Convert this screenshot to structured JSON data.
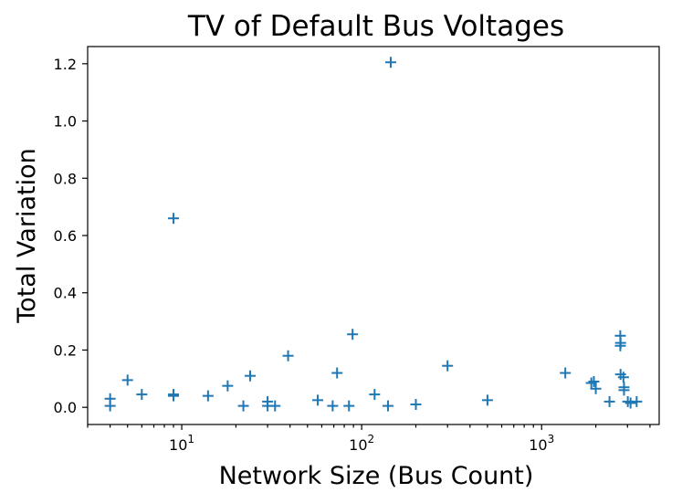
{
  "chart_data": {
    "type": "scatter",
    "title": "TV of Default Bus Voltages",
    "xlabel": "Network Size (Bus Count)",
    "ylabel": "Total Variation",
    "xscale": "log",
    "xlim": [
      3,
      4500
    ],
    "ylim": [
      -0.06,
      1.26
    ],
    "x_ticks": [
      {
        "value": 10,
        "base": "10",
        "exp": "1"
      },
      {
        "value": 100,
        "base": "10",
        "exp": "2"
      },
      {
        "value": 1000,
        "base": "10",
        "exp": "3"
      }
    ],
    "y_ticks": [
      0.0,
      0.2,
      0.4,
      0.6,
      0.8,
      1.0,
      1.2
    ],
    "y_tick_labels": [
      "0.0",
      "0.2",
      "0.4",
      "0.6",
      "0.8",
      "1.0",
      "1.2"
    ],
    "grid": false,
    "marker": "+",
    "marker_color": "#1f77b4",
    "series": [
      {
        "points": [
          [
            4,
            0.03
          ],
          [
            4,
            0.005
          ],
          [
            5,
            0.095
          ],
          [
            6,
            0.045
          ],
          [
            9,
            0.66
          ],
          [
            9,
            0.045
          ],
          [
            9,
            0.04
          ],
          [
            14,
            0.04
          ],
          [
            18,
            0.075
          ],
          [
            22,
            0.005
          ],
          [
            24,
            0.11
          ],
          [
            30,
            0.02
          ],
          [
            30,
            0.005
          ],
          [
            33,
            0.005
          ],
          [
            39,
            0.18
          ],
          [
            57,
            0.025
          ],
          [
            69,
            0.005
          ],
          [
            73,
            0.12
          ],
          [
            85,
            0.005
          ],
          [
            89,
            0.255
          ],
          [
            118,
            0.045
          ],
          [
            140,
            0.005
          ],
          [
            145,
            1.205
          ],
          [
            200,
            0.01
          ],
          [
            300,
            0.145
          ],
          [
            500,
            0.025
          ],
          [
            1354,
            0.12
          ],
          [
            1888,
            0.085
          ],
          [
            1951,
            0.09
          ],
          [
            2000,
            0.065
          ],
          [
            2383,
            0.02
          ],
          [
            2736,
            0.25
          ],
          [
            2737,
            0.215
          ],
          [
            2746,
            0.225
          ],
          [
            2746,
            0.115
          ],
          [
            2848,
            0.105
          ],
          [
            2869,
            0.06
          ],
          [
            2869,
            0.07
          ],
          [
            3012,
            0.02
          ],
          [
            3120,
            0.015
          ],
          [
            3374,
            0.02
          ]
        ]
      }
    ]
  }
}
